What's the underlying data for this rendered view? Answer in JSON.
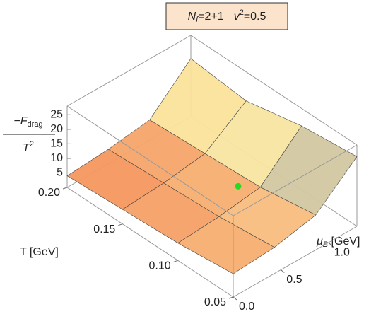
{
  "chart_data": {
    "type": "surface3d",
    "title": [
      "N",
      "f",
      "=2+1",
      "v",
      "2",
      "=0.5"
    ],
    "zlabel": [
      "−F",
      "drag",
      "T",
      "2"
    ],
    "xlabel": "T [GeV]",
    "ylabel": [
      "μ",
      "B",
      " [GeV]"
    ],
    "x": [
      0.05,
      0.1,
      0.15,
      0.2
    ],
    "y": [
      0,
      0.433,
      0.867,
      1.3
    ],
    "z": [
      [
        8,
        9,
        12,
        24
      ],
      [
        6,
        7,
        9,
        22
      ],
      [
        5,
        6,
        8,
        18
      ],
      [
        4,
        5,
        7,
        20
      ]
    ],
    "xlim": [
      0.05,
      0.2
    ],
    "ylim": [
      0,
      1.3
    ],
    "zlim": [
      0,
      28
    ],
    "xticks": [
      {
        "value": 0.2,
        "label": "0.20"
      },
      0.15,
      {
        "value": 0.1,
        "label": "0.10"
      },
      0.05
    ],
    "yticks": [
      {
        "value": 0,
        "label": "0.0"
      },
      0.5,
      {
        "value": 1,
        "label": "1.0"
      }
    ],
    "zticks": [
      25,
      20,
      15,
      10,
      5
    ],
    "colormap": [
      "#f26a3a",
      "#fbe8a0",
      "#2b3f9e"
    ],
    "critical_point": {
      "x": 0.11,
      "y": 0.75,
      "z": 9,
      "color": "#22dd22"
    }
  }
}
